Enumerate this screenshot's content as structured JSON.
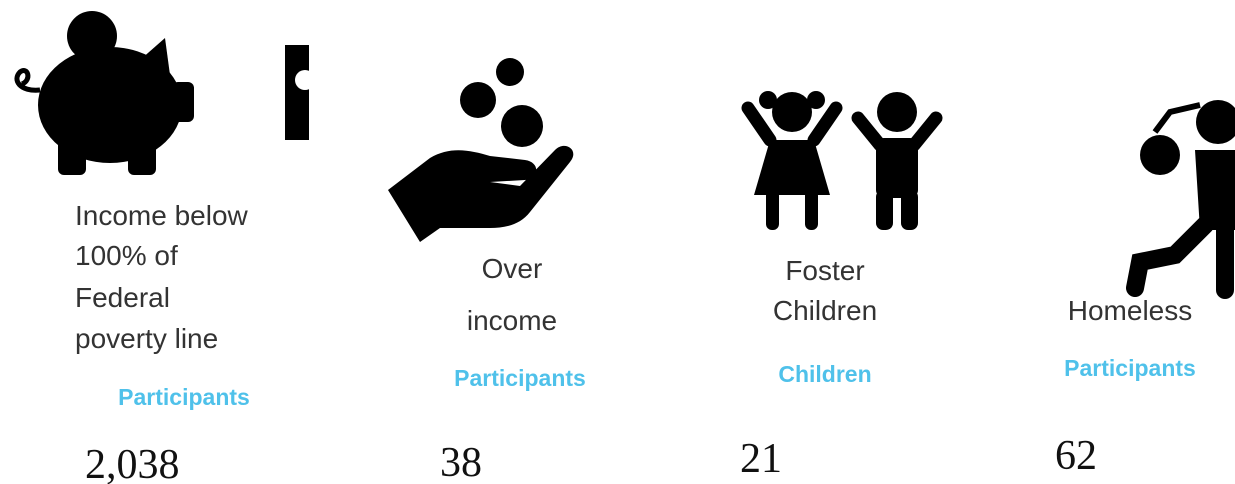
{
  "items": [
    {
      "label_lines": [
        "Income below",
        "100% of",
        "Federal",
        "poverty line"
      ],
      "group": "Participants",
      "count": "2,038"
    },
    {
      "label_lines": [
        "Over",
        "income"
      ],
      "group": "Participants",
      "count": "38"
    },
    {
      "label_lines": [
        "Foster",
        "Children"
      ],
      "group": "Children",
      "count": "21"
    },
    {
      "label_lines": [
        "Homeless"
      ],
      "group": "Participants",
      "count": "62"
    }
  ]
}
